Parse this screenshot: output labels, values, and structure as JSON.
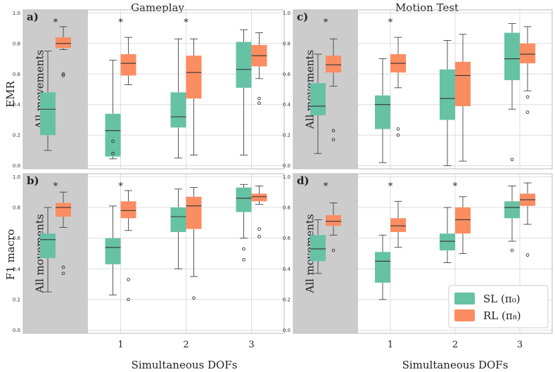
{
  "colors": {
    "sl": "#66c2a5",
    "rl": "#fc8d62",
    "shade": "#cccccc",
    "grid": "#dddddd",
    "frame": "#bbbbbb"
  },
  "chart_data": {
    "type": "box",
    "col_titles": [
      "Gameplay",
      "Motion Test"
    ],
    "xlabel": "Simultaneous DOFs",
    "row_labels": [
      "EMR",
      "F1 macro"
    ],
    "shaded_label": "All movements",
    "categories": [
      "All movements",
      "1",
      "2",
      "3"
    ],
    "x_tick_labels": [
      "1",
      "2",
      "3"
    ],
    "ylim": [
      -0.02,
      1.02
    ],
    "y_ticks": [
      "0.0",
      "0.2",
      "0.4",
      "0.6",
      "0.8",
      "1.0"
    ],
    "legend": [
      {
        "key": "sl",
        "label": "SL (π₀)"
      },
      {
        "key": "rl",
        "label": "RL (π₈)"
      }
    ],
    "panels": [
      {
        "label": "a)",
        "metric": "EMR",
        "test": "Gameplay",
        "significance": [
          "*",
          "*",
          "*",
          ""
        ],
        "sl": [
          {
            "wlo": 0.1,
            "q1": 0.2,
            "med": 0.37,
            "q3": 0.48,
            "whi": 0.75,
            "fliers": []
          },
          {
            "wlo": 0.045,
            "q1": 0.06,
            "med": 0.23,
            "q3": 0.34,
            "whi": 0.69,
            "fliers": [
              0.16,
              0.08
            ]
          },
          {
            "wlo": 0.05,
            "q1": 0.25,
            "med": 0.32,
            "q3": 0.48,
            "whi": 0.83,
            "fliers": []
          },
          {
            "wlo": 0.07,
            "q1": 0.51,
            "med": 0.63,
            "q3": 0.81,
            "whi": 0.89,
            "fliers": []
          }
        ],
        "rl": [
          {
            "wlo": 0.76,
            "q1": 0.77,
            "med": 0.8,
            "q3": 0.84,
            "whi": 0.91,
            "fliers": [
              0.6,
              0.59
            ]
          },
          {
            "wlo": 0.53,
            "q1": 0.59,
            "med": 0.67,
            "q3": 0.73,
            "whi": 0.84,
            "fliers": []
          },
          {
            "wlo": 0.07,
            "q1": 0.44,
            "med": 0.61,
            "q3": 0.72,
            "whi": 0.83,
            "fliers": []
          },
          {
            "wlo": 0.57,
            "q1": 0.65,
            "med": 0.72,
            "q3": 0.79,
            "whi": 0.87,
            "fliers": [
              0.44,
              0.41
            ]
          }
        ]
      },
      {
        "label": "c)",
        "metric": "EMR",
        "test": "Motion Test",
        "significance": [
          "*",
          "*",
          "",
          ""
        ],
        "sl": [
          {
            "wlo": 0.08,
            "q1": 0.33,
            "med": 0.39,
            "q3": 0.54,
            "whi": 0.73,
            "fliers": []
          },
          {
            "wlo": 0.02,
            "q1": 0.24,
            "med": 0.4,
            "q3": 0.46,
            "whi": 0.7,
            "fliers": []
          },
          {
            "wlo": 0.0,
            "q1": 0.3,
            "med": 0.44,
            "q3": 0.63,
            "whi": 0.82,
            "fliers": []
          },
          {
            "wlo": 0.37,
            "q1": 0.56,
            "med": 0.7,
            "q3": 0.87,
            "whi": 0.93,
            "fliers": [
              0.04
            ]
          }
        ],
        "rl": [
          {
            "wlo": 0.52,
            "q1": 0.61,
            "med": 0.66,
            "q3": 0.72,
            "whi": 0.83,
            "fliers": [
              0.23,
              0.17
            ]
          },
          {
            "wlo": 0.51,
            "q1": 0.61,
            "med": 0.67,
            "q3": 0.73,
            "whi": 0.84,
            "fliers": [
              0.24,
              0.2
            ]
          },
          {
            "wlo": 0.03,
            "q1": 0.39,
            "med": 0.59,
            "q3": 0.68,
            "whi": 0.86,
            "fliers": []
          },
          {
            "wlo": 0.49,
            "q1": 0.67,
            "med": 0.73,
            "q3": 0.8,
            "whi": 0.91,
            "fliers": [
              0.45,
              0.35
            ]
          }
        ]
      },
      {
        "label": "b)",
        "metric": "F1 macro",
        "test": "Gameplay",
        "significance": [
          "*",
          "*",
          "",
          ""
        ],
        "sl": [
          {
            "wlo": 0.25,
            "q1": 0.47,
            "med": 0.59,
            "q3": 0.63,
            "whi": 0.8,
            "fliers": []
          },
          {
            "wlo": 0.23,
            "q1": 0.43,
            "med": 0.54,
            "q3": 0.6,
            "whi": 0.81,
            "fliers": []
          },
          {
            "wlo": 0.4,
            "q1": 0.64,
            "med": 0.74,
            "q3": 0.8,
            "whi": 0.92,
            "fliers": []
          },
          {
            "wlo": 0.6,
            "q1": 0.77,
            "med": 0.86,
            "q3": 0.93,
            "whi": 0.95,
            "fliers": [
              0.53,
              0.46
            ]
          }
        ],
        "rl": [
          {
            "wlo": 0.67,
            "q1": 0.74,
            "med": 0.8,
            "q3": 0.83,
            "whi": 0.9,
            "fliers": [
              0.41,
              0.37
            ]
          },
          {
            "wlo": 0.65,
            "q1": 0.73,
            "med": 0.78,
            "q3": 0.84,
            "whi": 0.91,
            "fliers": [
              0.33,
              0.2
            ]
          },
          {
            "wlo": 0.35,
            "q1": 0.66,
            "med": 0.81,
            "q3": 0.87,
            "whi": 0.93,
            "fliers": [
              0.21
            ]
          },
          {
            "wlo": 0.82,
            "q1": 0.84,
            "med": 0.87,
            "q3": 0.89,
            "whi": 0.94,
            "fliers": [
              0.66,
              0.61
            ]
          }
        ]
      },
      {
        "label": "d)",
        "metric": "F1 macro",
        "test": "Motion Test",
        "significance": [
          "*",
          "*",
          "*",
          ""
        ],
        "sl": [
          {
            "wlo": 0.37,
            "q1": 0.45,
            "med": 0.53,
            "q3": 0.62,
            "whi": 0.72,
            "fliers": []
          },
          {
            "wlo": 0.2,
            "q1": 0.31,
            "med": 0.45,
            "q3": 0.51,
            "whi": 0.62,
            "fliers": []
          },
          {
            "wlo": 0.44,
            "q1": 0.52,
            "med": 0.58,
            "q3": 0.63,
            "whi": 0.8,
            "fliers": []
          },
          {
            "wlo": 0.58,
            "q1": 0.73,
            "med": 0.8,
            "q3": 0.84,
            "whi": 0.94,
            "fliers": [
              0.52
            ]
          }
        ],
        "rl": [
          {
            "wlo": 0.62,
            "q1": 0.68,
            "med": 0.71,
            "q3": 0.75,
            "whi": 0.83,
            "fliers": [
              0.52
            ]
          },
          {
            "wlo": 0.54,
            "q1": 0.64,
            "med": 0.68,
            "q3": 0.73,
            "whi": 0.84,
            "fliers": []
          },
          {
            "wlo": 0.5,
            "q1": 0.63,
            "med": 0.72,
            "q3": 0.8,
            "whi": 0.87,
            "fliers": []
          },
          {
            "wlo": 0.69,
            "q1": 0.81,
            "med": 0.85,
            "q3": 0.89,
            "whi": 0.96,
            "fliers": [
              0.49
            ]
          }
        ]
      }
    ]
  }
}
